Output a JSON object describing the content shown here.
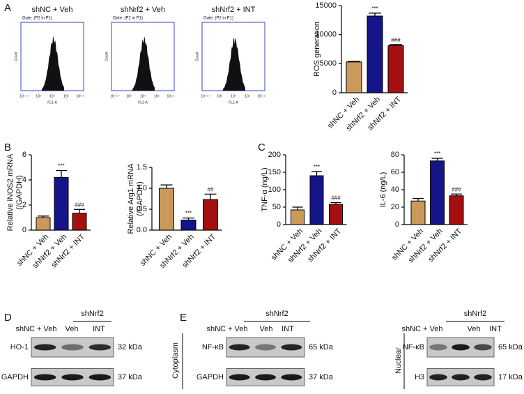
{
  "panel_labels": [
    "A",
    "B",
    "C",
    "D",
    "E"
  ],
  "flow": [
    {
      "title": "shNC + Veh",
      "gate": "Gate: (P2 in P1)",
      "ylabel": "Count",
      "xlabel": "FL1-A",
      "xticks": [
        "10⁻¹·⁷",
        "10³",
        "10⁴",
        "10⁵",
        "10⁶·¹"
      ]
    },
    {
      "title": "shNrf2 + Veh",
      "gate": "Gate: (P2 in P1)",
      "ylabel": "Count",
      "xlabel": "FL1-A",
      "xticks": [
        "10⁻¹·⁷",
        "10³",
        "10⁴",
        "10⁵",
        "10⁶·¹"
      ]
    },
    {
      "title": "shNrf2 + INT",
      "gate": "Gate: (P2 in P1)",
      "ylabel": "Count",
      "xlabel": "FL1-A",
      "xticks": [
        "10⁻¹·⁷",
        "10³",
        "10⁴",
        "10⁵",
        "10⁶·¹"
      ]
    }
  ],
  "chart_data": [
    {
      "type": "bar",
      "ylabel": [
        "ROS generation"
      ],
      "categories": [
        "shNC + Veh",
        "shNrf2 + Veh",
        "shNrf2 + INT"
      ],
      "values": [
        5300,
        13200,
        8100
      ],
      "errors": [
        100,
        500,
        200
      ],
      "colors": [
        "#c99a5b",
        "#15158a",
        "#a3100f"
      ],
      "significance": [
        null,
        "***",
        "###"
      ],
      "ylim": [
        0,
        15000
      ],
      "yticks": [
        0,
        5000,
        10000,
        15000
      ]
    },
    {
      "type": "bar",
      "ylabel": [
        "Relative iNOS2 mRNA",
        "(/GAPDH)"
      ],
      "categories": [
        "shNC + Veh",
        "shNrf2 + Veh",
        "shNrf2 + INT"
      ],
      "values": [
        1.0,
        4.2,
        1.35
      ],
      "errors": [
        0.12,
        0.55,
        0.3
      ],
      "colors": [
        "#c99a5b",
        "#15158a",
        "#a3100f"
      ],
      "significance": [
        null,
        "***",
        "###"
      ],
      "ylim": [
        0,
        6
      ],
      "yticks": [
        0,
        2,
        4,
        6
      ]
    },
    {
      "type": "bar",
      "ylabel": [
        "Relative Arg1 mRNA",
        "(/GAPDH)"
      ],
      "categories": [
        "shNC + Veh",
        "shNrf2 + Veh",
        "shNrf2 + INT"
      ],
      "values": [
        1.0,
        0.24,
        0.73
      ],
      "errors": [
        0.08,
        0.05,
        0.13
      ],
      "colors": [
        "#c99a5b",
        "#15158a",
        "#a3100f"
      ],
      "significance": [
        null,
        "***",
        "##"
      ],
      "ylim": [
        0,
        1.5
      ],
      "yticks": [
        {
          "value": 0,
          "label": "0.0"
        },
        0.5,
        {
          "value": 1,
          "label": "1.0"
        },
        1.5
      ]
    },
    {
      "type": "bar",
      "ylabel": [
        "TNF-α (ng/L)"
      ],
      "categories": [
        "shNC + Veh",
        "shNrf2 + Veh",
        "shNrf2 + INT"
      ],
      "values": [
        42,
        140,
        58
      ],
      "errors": [
        8,
        12,
        5
      ],
      "colors": [
        "#c99a5b",
        "#15158a",
        "#a3100f"
      ],
      "significance": [
        null,
        "***",
        "###"
      ],
      "ylim": [
        0,
        200
      ],
      "yticks": [
        0,
        50,
        100,
        150,
        200
      ]
    },
    {
      "type": "bar",
      "ylabel": [
        "IL-6 (ng/L)"
      ],
      "categories": [
        "shNC + Veh",
        "shNrf2 + Veh",
        "shNrf2 + INT"
      ],
      "values": [
        27,
        73,
        33
      ],
      "errors": [
        3,
        3,
        2
      ],
      "colors": [
        "#c99a5b",
        "#15158a",
        "#a3100f"
      ],
      "significance": [
        null,
        "***",
        "###"
      ],
      "ylim": [
        0,
        80
      ],
      "yticks": [
        0,
        20,
        40,
        60,
        80
      ]
    }
  ],
  "blots": [
    {
      "group": "shNrf2",
      "columns": [
        "shNC + Veh",
        "Veh",
        "INT"
      ],
      "rows": [
        {
          "protein": "HO-1",
          "size": "32 kDa"
        },
        {
          "protein": "GAPDH",
          "size": "37 kDa"
        }
      ]
    },
    {
      "group": "shNrf2",
      "columns": [
        "shNC + Veh",
        "Veh",
        "INT"
      ],
      "compartment": "Cytoplasm",
      "rows": [
        {
          "protein": "NF-κB",
          "size": "65 kDa"
        },
        {
          "protein": "GAPDH",
          "size": "37 kDa"
        }
      ]
    },
    {
      "group": "shNrf2",
      "columns": [
        "shNC + Veh",
        "Veh",
        "INT"
      ],
      "compartment": "Nuclear",
      "rows": [
        {
          "protein": "NF-κB",
          "size": "65 kDa"
        },
        {
          "protein": "H3",
          "size": "17 kDa"
        }
      ]
    }
  ]
}
